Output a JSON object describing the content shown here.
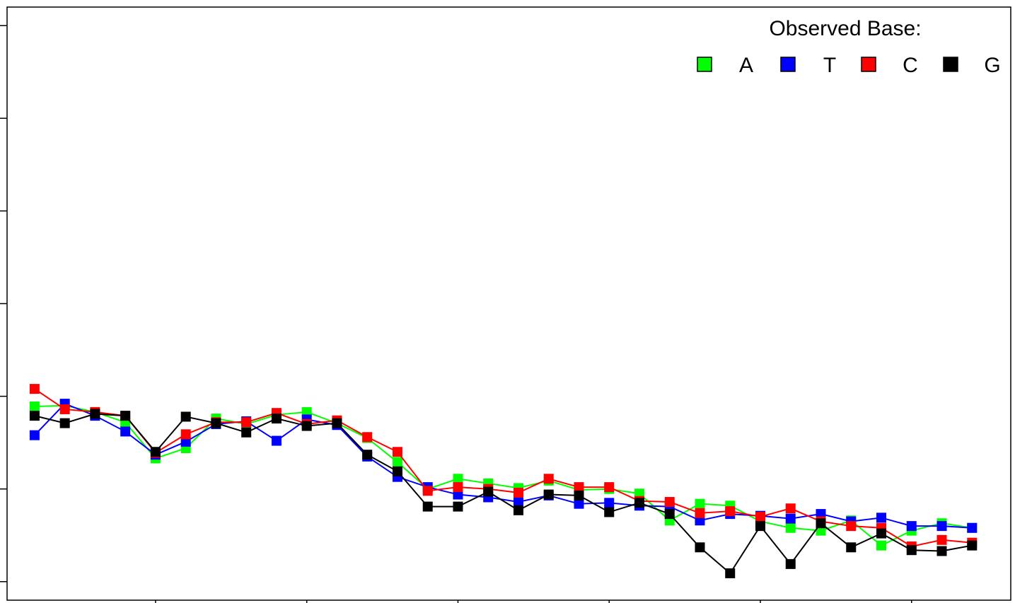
{
  "chart_data": {
    "type": "line",
    "title": "",
    "xlabel": "",
    "ylabel": "",
    "x": [
      1,
      2,
      3,
      4,
      5,
      6,
      7,
      8,
      9,
      10,
      11,
      12,
      13,
      14,
      15,
      16,
      17,
      18,
      19,
      20,
      21,
      22,
      23,
      24,
      25,
      26,
      27,
      28,
      29,
      30,
      31,
      32
    ],
    "xlim": [
      0.09,
      33.28
    ],
    "ylim": [
      -0.2,
      6.2
    ],
    "grid": false,
    "legend": {
      "title": "Observed Base:",
      "position": "top-right"
    },
    "series": [
      {
        "name": "A",
        "color": "#00ff00",
        "values": [
          1.89,
          1.9,
          1.83,
          1.72,
          1.33,
          1.44,
          1.76,
          1.7,
          1.8,
          1.83,
          1.71,
          1.55,
          1.29,
          1.0,
          1.11,
          1.06,
          1.01,
          1.09,
          0.99,
          1.0,
          0.95,
          0.66,
          0.84,
          0.82,
          0.65,
          0.58,
          0.55,
          0.66,
          0.39,
          0.55,
          0.63,
          0.58
        ]
      },
      {
        "name": "T",
        "color": "#0000ff",
        "values": [
          1.58,
          1.92,
          1.79,
          1.62,
          1.37,
          1.51,
          1.7,
          1.73,
          1.52,
          1.75,
          1.69,
          1.35,
          1.13,
          1.02,
          0.94,
          0.91,
          0.86,
          0.93,
          0.84,
          0.85,
          0.82,
          0.81,
          0.66,
          0.73,
          0.71,
          0.68,
          0.73,
          0.65,
          0.69,
          0.6,
          0.6,
          0.58
        ]
      },
      {
        "name": "C",
        "color": "#ff0000",
        "values": [
          2.08,
          1.86,
          1.83,
          1.79,
          1.39,
          1.59,
          1.72,
          1.72,
          1.82,
          1.7,
          1.74,
          1.56,
          1.4,
          0.98,
          1.02,
          1.0,
          0.96,
          1.11,
          1.02,
          1.02,
          0.87,
          0.86,
          0.74,
          0.76,
          0.7,
          0.79,
          0.65,
          0.6,
          0.58,
          0.38,
          0.45,
          0.42
        ]
      },
      {
        "name": "G",
        "color": "#000000",
        "values": [
          1.79,
          1.71,
          1.81,
          1.79,
          1.4,
          1.78,
          1.71,
          1.61,
          1.76,
          1.68,
          1.71,
          1.37,
          1.19,
          0.81,
          0.81,
          0.97,
          0.77,
          0.94,
          0.93,
          0.75,
          0.85,
          0.73,
          0.37,
          0.09,
          0.6,
          0.19,
          0.63,
          0.37,
          0.52,
          0.34,
          0.33,
          0.39
        ]
      }
    ]
  }
}
